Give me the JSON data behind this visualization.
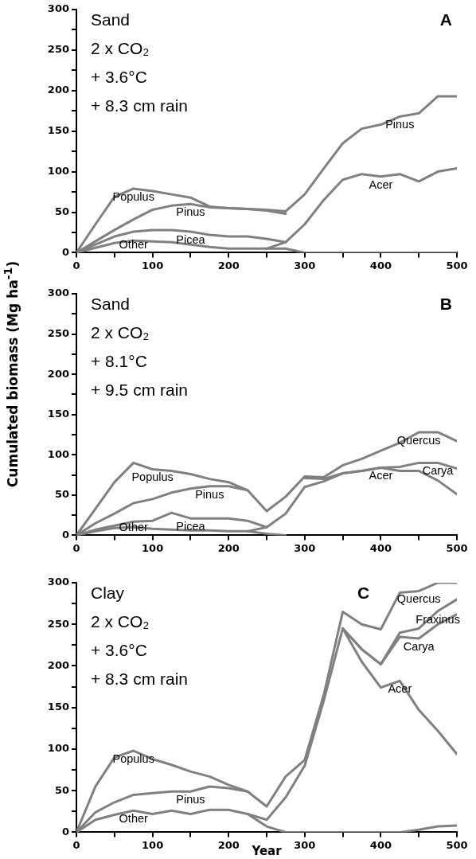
{
  "chart_data": [
    {
      "type": "line",
      "title": "A",
      "annotations": [
        "Sand",
        "2 x CO₂",
        "+ 3.6°C",
        "+ 8.3 cm rain",
        {
          "text": "Populus",
          "x": 75,
          "y": 79
        },
        {
          "text": "Pinus",
          "x": 150,
          "y": 60
        },
        {
          "text": "Picea",
          "x": 150,
          "y": 26
        },
        {
          "text": "Other",
          "x": 75,
          "y": 15
        },
        {
          "text": "Pinus",
          "x": 425,
          "y": 168
        },
        {
          "text": "Acer",
          "x": 400,
          "y": 94
        }
      ],
      "x": [
        0,
        25,
        50,
        75,
        100,
        125,
        150,
        175,
        200,
        225,
        250,
        275,
        300,
        325,
        350,
        375,
        400,
        425,
        450,
        475,
        500
      ],
      "series": [
        {
          "color": "#808080",
          "values": [
            0,
            6,
            12,
            15,
            14,
            13,
            10,
            7,
            5,
            5,
            5,
            5,
            0,
            0,
            0,
            0,
            0,
            0,
            0,
            0,
            0
          ]
        },
        {
          "color": "#808080",
          "values": [
            0,
            10,
            20,
            26,
            28,
            28,
            26,
            22,
            20,
            20,
            17,
            13,
            null,
            null,
            null,
            null,
            null,
            null,
            null,
            null,
            null
          ]
        },
        {
          "color": "#808080",
          "values": [
            0,
            14,
            28,
            41,
            53,
            58,
            60,
            56,
            55,
            54,
            52,
            48,
            null,
            null,
            null,
            null,
            null,
            null,
            null,
            null,
            null
          ]
        },
        {
          "color": "#808080",
          "values": [
            null,
            null,
            null,
            null,
            null,
            null,
            null,
            null,
            null,
            null,
            5,
            13,
            35,
            65,
            90,
            97,
            94,
            97,
            88,
            100,
            104
          ]
        },
        {
          "color": "#808080",
          "values": [
            0,
            35,
            69,
            79,
            76,
            72,
            68,
            57,
            55,
            54,
            53,
            51,
            72,
            104,
            135,
            153,
            158,
            168,
            172,
            193,
            193
          ]
        }
      ],
      "xlim": [
        0,
        500
      ],
      "xticks": [
        0,
        {
          "value": 50,
          "label": null
        },
        100,
        {
          "value": 150,
          "label": null
        },
        200,
        {
          "value": 250,
          "label": null
        },
        300,
        {
          "value": 350,
          "label": null
        },
        400,
        {
          "value": 450,
          "label": null
        },
        500
      ],
      "ylim": [
        0,
        300
      ],
      "yticks": [
        0,
        {
          "value": 25,
          "label": null
        },
        50,
        {
          "value": 75,
          "label": null
        },
        100,
        {
          "value": 125,
          "label": null
        },
        150,
        {
          "value": 175,
          "label": null
        },
        200,
        {
          "value": 225,
          "label": null
        },
        250,
        {
          "value": 275,
          "label": null
        },
        300
      ],
      "grid": false,
      "legend": false,
      "marker": "none",
      "line_style": "solid"
    },
    {
      "type": "line",
      "title": "B",
      "ylabel": "Cumulated biomass (Mg ha$^{-1}$)",
      "annotations": [
        "Sand",
        "2 x CO₂",
        "+ 8.1°C",
        "+ 9.5 cm rain",
        {
          "text": "Populus",
          "x": 100,
          "y": 82
        },
        {
          "text": "Pinus",
          "x": 175,
          "y": 61
        },
        {
          "text": "Picea",
          "x": 150,
          "y": 21
        },
        {
          "text": "Other",
          "x": 75,
          "y": 10
        },
        {
          "text": "Quercus",
          "x": 450,
          "y": 128
        },
        {
          "text": "Carya",
          "x": 475,
          "y": 90
        },
        {
          "text": "Acer",
          "x": 400,
          "y": 84
        }
      ],
      "x": [
        0,
        25,
        50,
        75,
        100,
        125,
        150,
        175,
        200,
        225,
        250,
        275,
        300,
        325,
        350,
        375,
        400,
        425,
        450,
        475,
        500
      ],
      "series": [
        {
          "color": "#808080",
          "values": [
            0,
            5,
            9,
            10,
            8,
            7,
            6,
            6,
            5,
            5,
            2,
            0,
            null,
            null,
            null,
            null,
            null,
            null,
            null,
            null,
            null
          ]
        },
        {
          "color": "#808080",
          "values": [
            0,
            7,
            12,
            17,
            18,
            28,
            21,
            21,
            21,
            18,
            10,
            null,
            null,
            null,
            null,
            null,
            null,
            null,
            null,
            null,
            null
          ]
        },
        {
          "color": "#808080",
          "values": [
            0,
            15,
            27,
            40,
            45,
            53,
            58,
            61,
            61,
            56,
            null,
            null,
            null,
            null,
            null,
            null,
            null,
            null,
            null,
            null,
            null
          ]
        },
        {
          "color": "#808080",
          "values": [
            null,
            null,
            null,
            null,
            null,
            null,
            null,
            null,
            null,
            5,
            10,
            27,
            60,
            67,
            77,
            80,
            84,
            80,
            80,
            68,
            51
          ]
        },
        {
          "color": "#808080",
          "values": [
            null,
            null,
            null,
            null,
            null,
            null,
            null,
            null,
            null,
            null,
            null,
            null,
            71,
            70,
            77,
            80,
            84,
            85,
            90,
            90,
            83
          ]
        },
        {
          "color": "#808080",
          "values": [
            0,
            33,
            66,
            90,
            82,
            80,
            76,
            70,
            66,
            56,
            30,
            48,
            73,
            72,
            87,
            95,
            105,
            115,
            128,
            128,
            117
          ]
        }
      ],
      "xlim": [
        0,
        500
      ],
      "xticks": [
        0,
        {
          "value": 50,
          "label": null
        },
        100,
        {
          "value": 150,
          "label": null
        },
        200,
        {
          "value": 250,
          "label": null
        },
        300,
        {
          "value": 350,
          "label": null
        },
        400,
        {
          "value": 450,
          "label": null
        },
        500
      ],
      "ylim": [
        0,
        300
      ],
      "yticks": [
        0,
        {
          "value": 25,
          "label": null
        },
        50,
        {
          "value": 75,
          "label": null
        },
        100,
        {
          "value": 125,
          "label": null
        },
        150,
        {
          "value": 175,
          "label": null
        },
        200,
        {
          "value": 225,
          "label": null
        },
        250,
        {
          "value": 275,
          "label": null
        },
        300
      ],
      "grid": false,
      "legend": false,
      "marker": "none",
      "line_style": "solid"
    },
    {
      "type": "line",
      "title": "C",
      "xlabel": "Year",
      "annotations": [
        "Clay",
        "2 x CO₂",
        "+ 3.6°C",
        "+ 8.3 cm rain",
        {
          "text": "Populus",
          "x": 75,
          "y": 98
        },
        {
          "text": "Pinus",
          "x": 150,
          "y": 49
        },
        {
          "text": "Other",
          "x": 75,
          "y": 26
        },
        {
          "text": "Quercus",
          "x": 450,
          "y": 290
        },
        {
          "text": "Fraxinus",
          "x": 475,
          "y": 266
        },
        {
          "text": "Carya",
          "x": 450,
          "y": 233
        },
        {
          "text": "Acer",
          "x": 425,
          "y": 182
        }
      ],
      "x": [
        0,
        25,
        50,
        75,
        100,
        125,
        150,
        175,
        200,
        225,
        250,
        275,
        300,
        325,
        350,
        375,
        400,
        425,
        450,
        475,
        500
      ],
      "series": [
        {
          "color": "#808080",
          "values": [
            0,
            15,
            21,
            26,
            22,
            26,
            22,
            27,
            27,
            22,
            7,
            0,
            0,
            0,
            0,
            0,
            0,
            0,
            3,
            7,
            8
          ]
        },
        {
          "color": "#808080",
          "values": [
            0,
            24,
            36,
            45,
            47,
            49,
            49,
            55,
            53,
            49,
            null,
            null,
            null,
            null,
            null,
            null,
            null,
            null,
            null,
            null,
            null
          ]
        },
        {
          "color": "#808080",
          "values": [
            null,
            null,
            null,
            null,
            null,
            null,
            null,
            null,
            null,
            22,
            15,
            42,
            80,
            158,
            245,
            205,
            174,
            182,
            147,
            122,
            94
          ]
        },
        {
          "color": "#808080",
          "values": [
            null,
            null,
            null,
            null,
            null,
            null,
            null,
            null,
            null,
            null,
            null,
            null,
            null,
            null,
            245,
            220,
            202,
            235,
            233,
            250,
            262
          ]
        },
        {
          "color": "#808080",
          "values": [
            null,
            null,
            null,
            null,
            null,
            null,
            null,
            null,
            null,
            null,
            null,
            null,
            null,
            null,
            245,
            220,
            202,
            240,
            245,
            266,
            280
          ]
        },
        {
          "color": "#808080",
          "values": [
            0,
            55,
            90,
            98,
            88,
            81,
            73,
            67,
            57,
            49,
            31,
            67,
            87,
            165,
            265,
            250,
            244,
            288,
            290,
            300,
            300
          ]
        }
      ],
      "xlim": [
        0,
        500
      ],
      "xticks": [
        0,
        {
          "value": 50,
          "label": null
        },
        100,
        {
          "value": 150,
          "label": null
        },
        200,
        {
          "value": 250,
          "label": null
        },
        300,
        {
          "value": 350,
          "label": null
        },
        400,
        {
          "value": 450,
          "label": null
        },
        500
      ],
      "ylim": [
        0,
        300
      ],
      "yticks": [
        0,
        {
          "value": 25,
          "label": null
        },
        50,
        {
          "value": 75,
          "label": null
        },
        100,
        {
          "value": 125,
          "label": null
        },
        150,
        {
          "value": 175,
          "label": null
        },
        200,
        {
          "value": 225,
          "label": null
        },
        250,
        {
          "value": 275,
          "label": null
        },
        300
      ],
      "grid": false,
      "legend": false,
      "marker": "none",
      "line_style": "solid"
    }
  ]
}
